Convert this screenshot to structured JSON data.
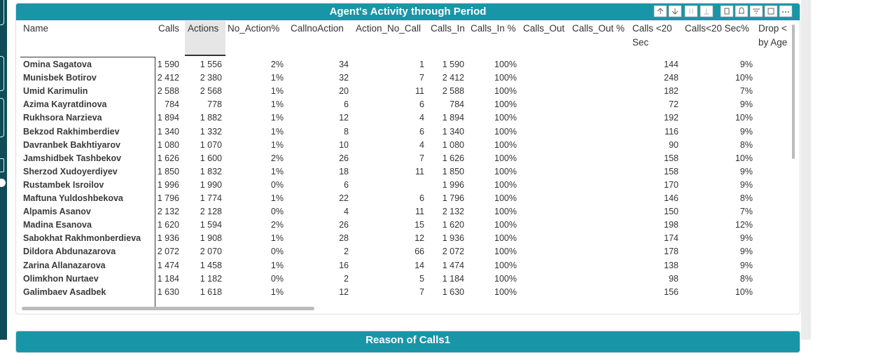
{
  "panel": {
    "title": "Agent's Activity through Period"
  },
  "table": {
    "columns": [
      "Name",
      "Calls",
      "Actions",
      "No_Action%",
      "CallnoAction",
      "Action_No_Call",
      "Calls_In",
      "Calls_In %",
      "Calls_Out",
      "Calls_Out %",
      "Calls <20 Sec",
      "Calls<20 Sec%",
      "Drop < by Age"
    ],
    "rows": [
      [
        "Omina Sagatova",
        "1 590",
        "1 556",
        "2%",
        "34",
        "1",
        "1 590",
        "100%",
        null,
        null,
        "144",
        "9%",
        null
      ],
      [
        "Munisbek Botirov",
        "2 412",
        "2 380",
        "1%",
        "32",
        "7",
        "2 412",
        "100%",
        null,
        null,
        "248",
        "10%",
        null
      ],
      [
        "Umid Karimulin",
        "2 588",
        "2 568",
        "1%",
        "20",
        "11",
        "2 588",
        "100%",
        null,
        null,
        "182",
        "7%",
        null
      ],
      [
        "Azima Kayratdinova",
        "784",
        "778",
        "1%",
        "6",
        "6",
        "784",
        "100%",
        null,
        null,
        "72",
        "9%",
        null
      ],
      [
        "Rukhsora Narzieva",
        "1 894",
        "1 882",
        "1%",
        "12",
        "4",
        "1 894",
        "100%",
        null,
        null,
        "192",
        "10%",
        null
      ],
      [
        "Bekzod Rakhimberdiev",
        "1 340",
        "1 332",
        "1%",
        "8",
        "6",
        "1 340",
        "100%",
        null,
        null,
        "116",
        "9%",
        null
      ],
      [
        "Davranbek Bakhtiyarov",
        "1 080",
        "1 070",
        "1%",
        "10",
        "4",
        "1 080",
        "100%",
        null,
        null,
        "90",
        "8%",
        null
      ],
      [
        "Jamshidbek Tashbekov",
        "1 626",
        "1 600",
        "2%",
        "26",
        "7",
        "1 626",
        "100%",
        null,
        null,
        "158",
        "10%",
        null
      ],
      [
        "Sherzod Xudoyerdiyev",
        "1 850",
        "1 832",
        "1%",
        "18",
        "11",
        "1 850",
        "100%",
        null,
        null,
        "158",
        "9%",
        null
      ],
      [
        "Rustambek Isroilov",
        "1 996",
        "1 990",
        "0%",
        "6",
        null,
        "1 996",
        "100%",
        null,
        null,
        "170",
        "9%",
        null
      ],
      [
        "Maftuna Yuldoshbekova",
        "1 796",
        "1 774",
        "1%",
        "22",
        "6",
        "1 796",
        "100%",
        null,
        null,
        "146",
        "8%",
        null
      ],
      [
        "Alpamis Asanov",
        "2 132",
        "2 128",
        "0%",
        "4",
        "11",
        "2 132",
        "100%",
        null,
        null,
        "150",
        "7%",
        null
      ],
      [
        "Madina Esanova",
        "1 620",
        "1 594",
        "2%",
        "26",
        "15",
        "1 620",
        "100%",
        null,
        null,
        "198",
        "12%",
        null
      ],
      [
        "Sabokhat Rakhmonberdieva",
        "1 936",
        "1 908",
        "1%",
        "28",
        "12",
        "1 936",
        "100%",
        null,
        null,
        "174",
        "9%",
        null
      ],
      [
        "Dildora Abdunazarova",
        "2 072",
        "2 070",
        "0%",
        "2",
        "66",
        "2 072",
        "100%",
        null,
        null,
        "178",
        "9%",
        null
      ],
      [
        "Zarina Allanazarova",
        "1 474",
        "1 458",
        "1%",
        "16",
        "14",
        "1 474",
        "100%",
        null,
        null,
        "138",
        "9%",
        null
      ],
      [
        "Olimkhon Nurtaev",
        "1 184",
        "1 182",
        "0%",
        "2",
        "5",
        "1 184",
        "100%",
        null,
        null,
        "98",
        "8%",
        null
      ],
      [
        "Galimbaev Asadbek",
        "1 630",
        "1 618",
        "1%",
        "12",
        "7",
        "1 630",
        "100%",
        null,
        null,
        "156",
        "10%",
        null
      ]
    ]
  },
  "panel2": {
    "title": "Reason of Calls1"
  }
}
